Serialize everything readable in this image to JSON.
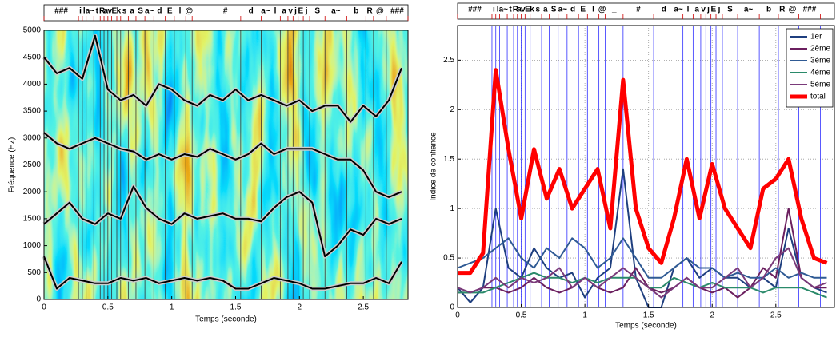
{
  "segmentation": {
    "labels": [
      "###",
      "i",
      "l",
      "a~",
      "t",
      "R",
      "a",
      "v",
      "E",
      "k",
      "s",
      "a",
      "S",
      "a~",
      "d",
      "E",
      "l",
      "@",
      "_",
      "#",
      "d",
      "a~",
      "l",
      "a",
      "v",
      "j",
      "E",
      "j",
      "S",
      "a~",
      "b",
      "R",
      "@",
      "###"
    ],
    "boundaries": [
      0,
      0.27,
      0.3,
      0.33,
      0.39,
      0.44,
      0.47,
      0.5,
      0.53,
      0.57,
      0.6,
      0.66,
      0.72,
      0.79,
      0.86,
      0.95,
      1.02,
      1.11,
      1.16,
      1.3,
      1.54,
      1.7,
      1.77,
      1.85,
      1.91,
      1.95,
      1.99,
      2.03,
      2.08,
      2.2,
      2.37,
      2.52,
      2.58,
      2.68,
      2.85
    ]
  },
  "chart_data": [
    {
      "type": "line",
      "x_label": "Temps (seconde)",
      "y_label": "Fréquence (Hz)",
      "spectrogram": true,
      "grid": false,
      "xlim": [
        0,
        2.85
      ],
      "ylim": [
        0,
        5000
      ],
      "xticks": [
        0,
        0.5,
        1,
        1.5,
        2,
        2.5
      ],
      "yticks": [
        0,
        500,
        1000,
        1500,
        2000,
        2500,
        3000,
        3500,
        4000,
        4500,
        5000
      ],
      "x": [
        0,
        0.1,
        0.2,
        0.3,
        0.4,
        0.5,
        0.6,
        0.7,
        0.8,
        0.9,
        1,
        1.1,
        1.2,
        1.3,
        1.4,
        1.5,
        1.6,
        1.7,
        1.8,
        1.9,
        2,
        2.1,
        2.2,
        2.3,
        2.4,
        2.5,
        2.6,
        2.7,
        2.8
      ],
      "series": [
        {
          "color": "#000000",
          "values": [
            800,
            200,
            400,
            350,
            300,
            300,
            400,
            350,
            400,
            300,
            350,
            400,
            350,
            400,
            350,
            200,
            200,
            300,
            400,
            350,
            300,
            200,
            200,
            250,
            300,
            300,
            400,
            300,
            700
          ]
        },
        {
          "color": "#000000",
          "values": [
            1400,
            1600,
            1800,
            1500,
            1400,
            1600,
            1500,
            2100,
            1700,
            1500,
            1400,
            1600,
            1500,
            1550,
            1600,
            1500,
            1500,
            1450,
            1700,
            1900,
            2000,
            1800,
            800,
            1000,
            1300,
            1200,
            1500,
            1400,
            1500
          ]
        },
        {
          "color": "#000000",
          "values": [
            3100,
            2900,
            2800,
            2900,
            3000,
            2900,
            2800,
            2750,
            2600,
            2700,
            2600,
            2700,
            2650,
            2800,
            2700,
            2600,
            2700,
            2900,
            2700,
            2800,
            2800,
            2800,
            2700,
            2600,
            2600,
            2400,
            2000,
            1900,
            2000
          ]
        },
        {
          "color": "#000000",
          "values": [
            4500,
            4200,
            4300,
            4100,
            4900,
            3900,
            3700,
            3800,
            3600,
            4000,
            3900,
            3700,
            3600,
            3800,
            3700,
            3900,
            3700,
            3800,
            3700,
            3600,
            3700,
            3500,
            3600,
            3600,
            3300,
            3600,
            3400,
            3700,
            4300
          ]
        }
      ]
    },
    {
      "type": "line",
      "x_label": "Temps (seconde)",
      "y_label": "Indice de confiance",
      "spectrogram": false,
      "grid": true,
      "legend": "upper right",
      "xlim": [
        0,
        2.96
      ],
      "ylim": [
        0,
        2.85
      ],
      "xticks": [
        0,
        0.5,
        1,
        1.5,
        2,
        2.5
      ],
      "yticks": [
        0,
        0.5,
        1,
        1.5,
        2,
        2.5
      ],
      "x": [
        0,
        0.1,
        0.2,
        0.3,
        0.4,
        0.5,
        0.6,
        0.7,
        0.8,
        0.9,
        1,
        1.1,
        1.2,
        1.3,
        1.4,
        1.5,
        1.6,
        1.7,
        1.8,
        1.9,
        2,
        2.1,
        2.2,
        2.3,
        2.4,
        2.5,
        2.6,
        2.7,
        2.8,
        2.9
      ],
      "series": [
        {
          "name": "1er",
          "color": "#1f3f7f",
          "line_width": 2,
          "values": [
            0.2,
            0.05,
            0.2,
            1,
            0.4,
            0.3,
            0.6,
            0.4,
            0.3,
            0.35,
            0.1,
            0.3,
            0.4,
            1.4,
            0.3,
            0,
            0,
            0.4,
            0.5,
            0.3,
            0.4,
            0.3,
            0.3,
            0.2,
            0.3,
            0.2,
            0.8,
            0.3,
            0.2,
            0.15
          ]
        },
        {
          "name": "2ème",
          "color": "#6b1f5f",
          "line_width": 2,
          "values": [
            0.15,
            0.15,
            0.2,
            0.2,
            0.15,
            0.2,
            0.3,
            0.2,
            0.15,
            0.2,
            0.3,
            0.2,
            0.15,
            0.2,
            0.4,
            0.2,
            0.15,
            0.2,
            0.3,
            0.2,
            0.15,
            0.2,
            0.1,
            0.2,
            0.4,
            0.3,
            1,
            0.3,
            0.2,
            0.2
          ]
        },
        {
          "name": "3ème",
          "color": "#2f5a94",
          "line_width": 2,
          "values": [
            0.4,
            0.45,
            0.5,
            0.6,
            0.7,
            0.5,
            0.4,
            0.6,
            0.5,
            0.7,
            0.6,
            0.4,
            0.5,
            0.7,
            0.5,
            0.3,
            0.3,
            0.4,
            0.5,
            0.4,
            0.4,
            0.3,
            0.35,
            0.3,
            0.3,
            0.4,
            0.3,
            0.35,
            0.3,
            0.3
          ]
        },
        {
          "name": "4ème",
          "color": "#2a8a6a",
          "line_width": 2,
          "values": [
            0.15,
            0.15,
            0.15,
            0.2,
            0.25,
            0.3,
            0.35,
            0.3,
            0.3,
            0.25,
            0.3,
            0.25,
            0.3,
            0.3,
            0.3,
            0.2,
            0.2,
            0.3,
            0.25,
            0.2,
            0.25,
            0.2,
            0.2,
            0.2,
            0.15,
            0.2,
            0.2,
            0.2,
            0.15,
            0.1
          ]
        },
        {
          "name": "5ème",
          "color": "#7a3a7a",
          "line_width": 2,
          "values": [
            0.2,
            0.15,
            0.2,
            0.3,
            0.2,
            0.3,
            0.25,
            0.3,
            0.4,
            0.2,
            0.3,
            0.2,
            0.3,
            0.4,
            0.3,
            0.2,
            0.1,
            0.2,
            0.3,
            0.2,
            0.2,
            0.3,
            0.4,
            0.2,
            0.3,
            0.5,
            0.6,
            0.3,
            0.2,
            0.25
          ]
        },
        {
          "name": "total",
          "color": "#ff0000",
          "line_width": 5,
          "values": [
            0.35,
            0.35,
            0.55,
            2.4,
            1.6,
            0.9,
            1.6,
            1.1,
            1.4,
            1,
            1.2,
            1.4,
            0.8,
            2.3,
            1,
            0.6,
            0.45,
            0.9,
            1.5,
            0.9,
            1.45,
            1,
            0.8,
            0.6,
            1.2,
            1.3,
            1.5,
            0.9,
            0.5,
            0.45
          ]
        }
      ]
    }
  ]
}
